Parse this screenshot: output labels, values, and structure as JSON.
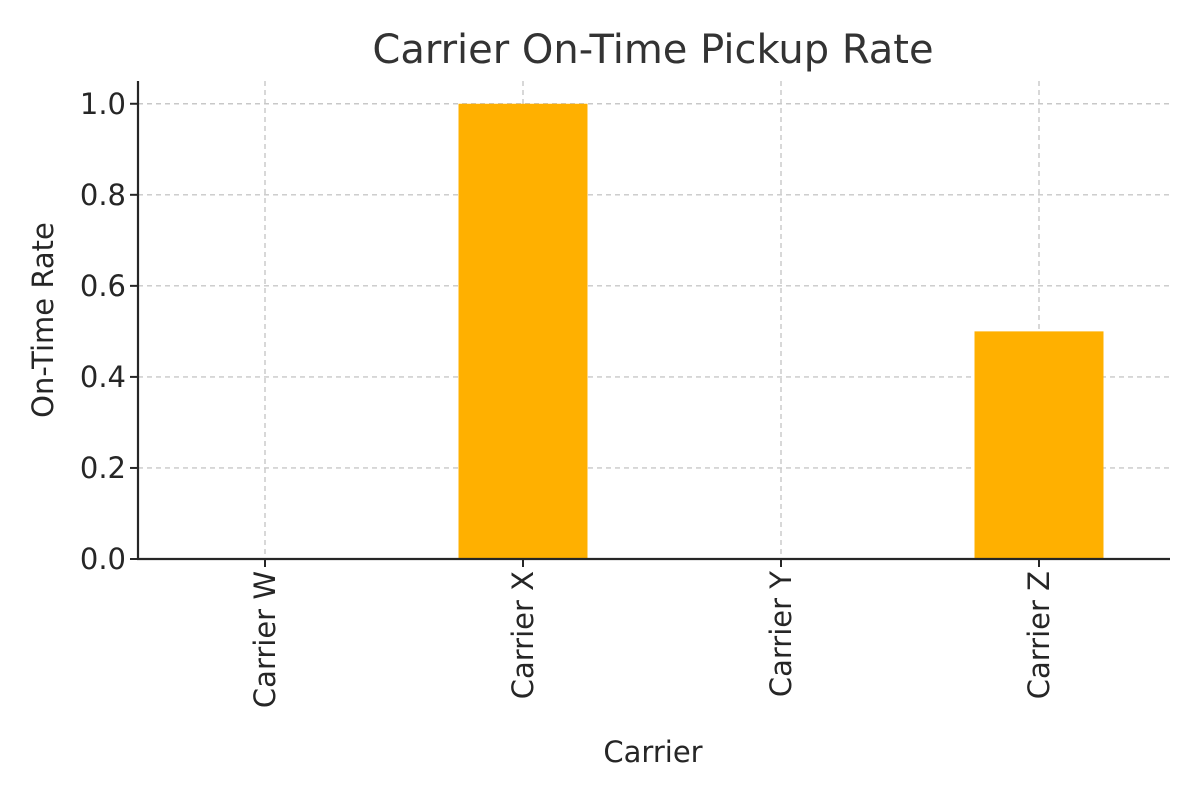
{
  "chart_data": {
    "type": "bar",
    "title": "Carrier On-Time Pickup Rate",
    "xlabel": "Carrier",
    "ylabel": "On-Time Rate",
    "categories": [
      "Carrier W",
      "Carrier X",
      "Carrier Y",
      "Carrier Z"
    ],
    "values": [
      0.0,
      1.0,
      0.0,
      0.5
    ],
    "ylim": [
      0.0,
      1.05
    ],
    "yticks": [
      0.0,
      0.2,
      0.4,
      0.6,
      0.8,
      1.0
    ],
    "ytick_labels": [
      "0.0",
      "0.2",
      "0.4",
      "0.6",
      "0.8",
      "1.0"
    ],
    "grid": true,
    "bar_color": "#FFB000",
    "x_tick_rotation": "vertical"
  }
}
